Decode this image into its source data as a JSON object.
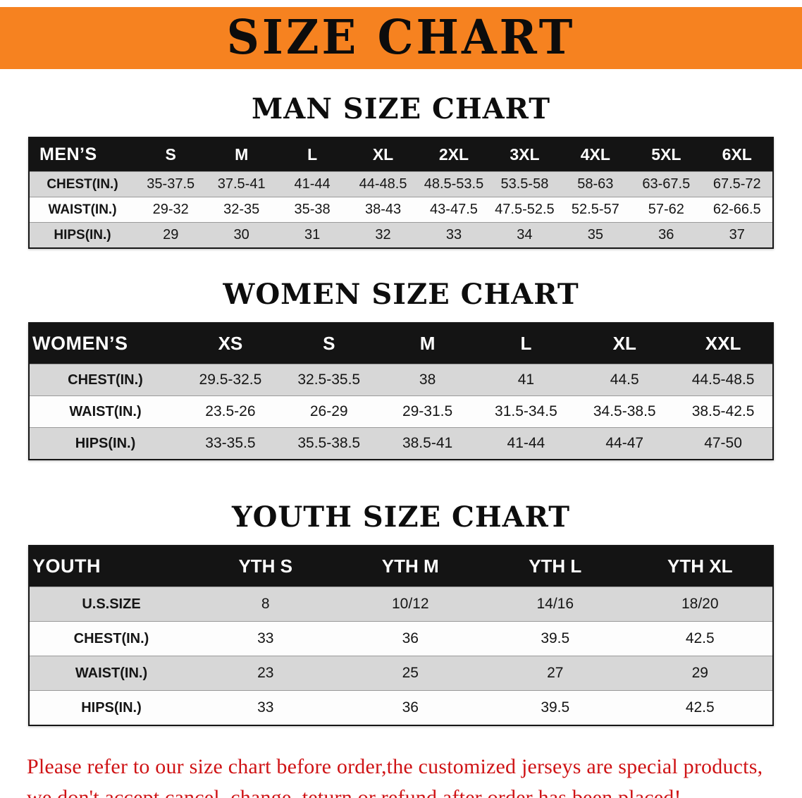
{
  "banner": {
    "title": "SIZE CHART"
  },
  "colors": {
    "banner_bg": "#f68220",
    "header_bg": "#141414",
    "row_gray": "#d7d7d7",
    "note_red": "#cf1315"
  },
  "sections": [
    {
      "heading": "MAN SIZE CHART",
      "table": {
        "header": [
          "MEN’S",
          "S",
          "M",
          "L",
          "XL",
          "2XL",
          "3XL",
          "4XL",
          "5XL",
          "6XL"
        ],
        "rows": [
          [
            "CHEST(IN.)",
            "35-37.5",
            "37.5-41",
            "41-44",
            "44-48.5",
            "48.5-53.5",
            "53.5-58",
            "58-63",
            "63-67.5",
            "67.5-72"
          ],
          [
            "WAIST(IN.)",
            "29-32",
            "32-35",
            "35-38",
            "38-43",
            "43-47.5",
            "47.5-52.5",
            "52.5-57",
            "57-62",
            "62-66.5"
          ],
          [
            "HIPS(IN.)",
            "29",
            "30",
            "31",
            "32",
            "33",
            "34",
            "35",
            "36",
            "37"
          ]
        ]
      }
    },
    {
      "heading": "WOMEN SIZE CHART",
      "table": {
        "header": [
          "WOMEN’S",
          "XS",
          "S",
          "M",
          "L",
          "XL",
          "XXL"
        ],
        "rows": [
          [
            "CHEST(IN.)",
            "29.5-32.5",
            "32.5-35.5",
            "38",
            "41",
            "44.5",
            "44.5-48.5"
          ],
          [
            "WAIST(IN.)",
            "23.5-26",
            "26-29",
            "29-31.5",
            "31.5-34.5",
            "34.5-38.5",
            "38.5-42.5"
          ],
          [
            "HIPS(IN.)",
            "33-35.5",
            "35.5-38.5",
            "38.5-41",
            "41-44",
            "44-47",
            "47-50"
          ]
        ]
      }
    },
    {
      "heading": "YOUTH SIZE CHART",
      "table": {
        "header": [
          "YOUTH",
          "YTH S",
          "YTH M",
          "YTH L",
          "YTH XL"
        ],
        "rows": [
          [
            "U.S.SIZE",
            "8",
            "10/12",
            "14/16",
            "18/20"
          ],
          [
            "CHEST(IN.)",
            "33",
            "36",
            "39.5",
            "42.5"
          ],
          [
            "WAIST(IN.)",
            "23",
            "25",
            "27",
            "29"
          ],
          [
            "HIPS(IN.)",
            "33",
            "36",
            "39.5",
            "42.5"
          ]
        ]
      }
    }
  ],
  "footer_note": {
    "line1": "Please refer to our size chart before order,the customized jerseys are special products,",
    "line2": "we don't accept cancel, change, teturn or refund after order has been placed!"
  }
}
